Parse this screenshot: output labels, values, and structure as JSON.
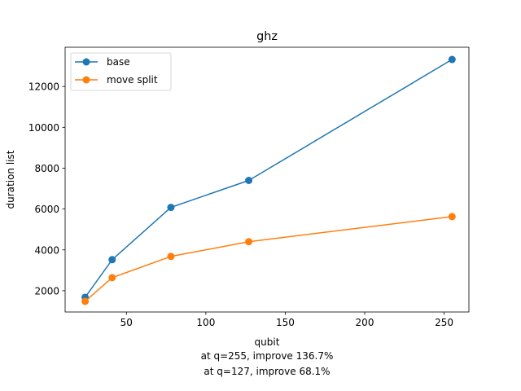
{
  "chart_data": {
    "type": "line",
    "title": "ghz",
    "xlabel": "qubit",
    "ylabel": "duration list",
    "xlim": [
      11.4,
      265.6
    ],
    "ylim": [
      960,
      13920
    ],
    "xticks": [
      50,
      100,
      150,
      200,
      250
    ],
    "yticks": [
      2000,
      4000,
      6000,
      8000,
      10000,
      12000
    ],
    "grid": false,
    "legend_position": "top-left",
    "series": [
      {
        "name": "base",
        "color": "#1f77b4",
        "marker": "circle",
        "x": [
          24,
          41,
          78,
          127,
          255
        ],
        "y": [
          1680,
          3520,
          6080,
          7400,
          13320
        ]
      },
      {
        "name": "move split",
        "color": "#ff7f0e",
        "marker": "circle",
        "x": [
          24,
          41,
          78,
          127,
          255
        ],
        "y": [
          1480,
          2640,
          3680,
          4400,
          5630
        ]
      }
    ],
    "annotations": [
      "at q=255, improve 136.7%",
      "at q=127, improve 68.1%"
    ]
  }
}
